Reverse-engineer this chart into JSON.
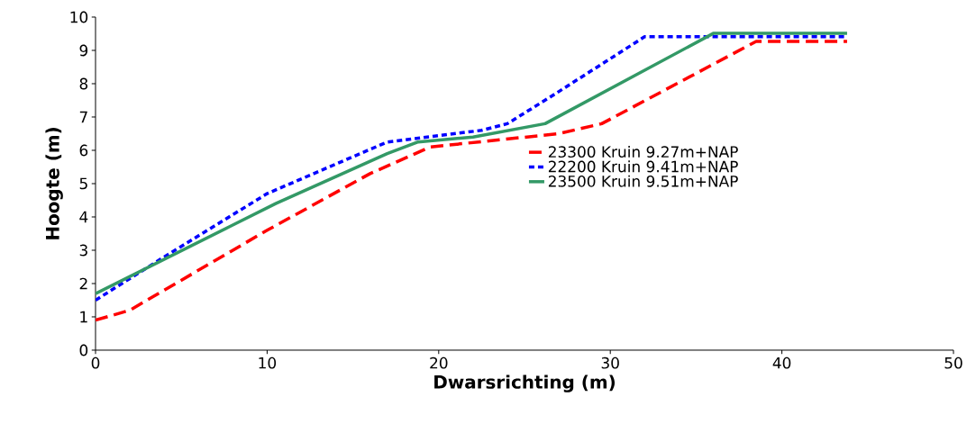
{
  "chart_data": {
    "type": "line",
    "xlabel": "Dwarsrichting (m)",
    "ylabel": "Hoogte (m)",
    "xlim": [
      0,
      50
    ],
    "ylim": [
      0,
      10
    ],
    "xticks": [
      0,
      10,
      20,
      30,
      40,
      50
    ],
    "yticks": [
      0,
      1,
      2,
      3,
      4,
      5,
      6,
      7,
      8,
      9,
      10
    ],
    "grid": false,
    "legend": "right",
    "marker": "none",
    "series": [
      {
        "name": "23300 Kruin 9.27m+NAP",
        "color": "#ff0000",
        "line_style": "dashed",
        "x": [
          0,
          2,
          10,
          16,
          19.5,
          27,
          29.5,
          38.5,
          43.8
        ],
        "values": [
          0.9,
          1.2,
          3.6,
          5.3,
          6.1,
          6.5,
          6.8,
          9.27,
          9.27
        ]
      },
      {
        "name": "22200 Kruin 9.41m+NAP",
        "color": "#0000ff",
        "line_style": "dotted",
        "x": [
          0,
          4,
          10,
          17,
          22.5,
          24,
          26.5,
          32,
          43.8
        ],
        "values": [
          1.5,
          2.8,
          4.7,
          6.25,
          6.6,
          6.8,
          7.6,
          9.41,
          9.41
        ]
      },
      {
        "name": "23500 Kruin 9.51m+NAP",
        "color": "#339966",
        "line_style": "solid",
        "x": [
          0,
          10.5,
          17,
          18.8,
          22,
          26.2,
          36,
          43.8
        ],
        "values": [
          1.7,
          4.4,
          5.9,
          6.25,
          6.4,
          6.8,
          9.51,
          9.51
        ]
      }
    ]
  }
}
